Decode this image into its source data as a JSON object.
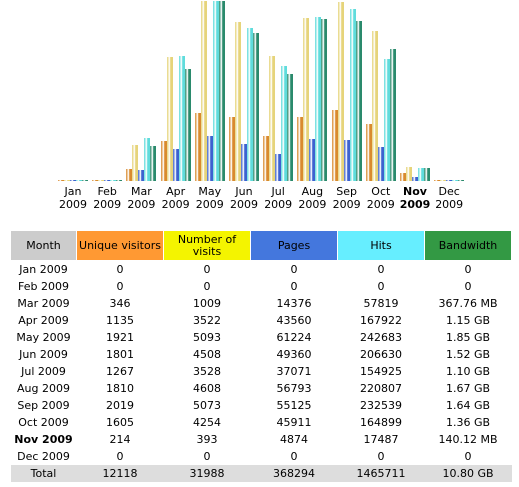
{
  "chart_data": {
    "type": "bar",
    "categories": [
      "Jan 2009",
      "Feb 2009",
      "Mar 2009",
      "Apr 2009",
      "May 2009",
      "Jun 2009",
      "Jul 2009",
      "Aug 2009",
      "Sep 2009",
      "Oct 2009",
      "Nov 2009",
      "Dec 2009"
    ],
    "series": [
      {
        "name": "Unique visitors",
        "color": "#d98a2e",
        "values": [
          0,
          0,
          346,
          1135,
          1921,
          1801,
          1267,
          1810,
          2019,
          1605,
          214,
          0
        ]
      },
      {
        "name": "Number of visits",
        "color": "#e6d47a",
        "values": [
          0,
          0,
          1009,
          3522,
          5093,
          4508,
          3528,
          4608,
          5073,
          4254,
          393,
          0
        ]
      },
      {
        "name": "Pages",
        "color": "#3c62d0",
        "values": [
          0,
          0,
          14376,
          43560,
          61224,
          49360,
          37071,
          56793,
          55125,
          45911,
          4874,
          0
        ]
      },
      {
        "name": "Hits",
        "color": "#5fdcdc",
        "values": [
          0,
          0,
          57819,
          167922,
          242683,
          206630,
          154925,
          220807,
          232539,
          164899,
          17487,
          0
        ]
      },
      {
        "name": "Bandwidth",
        "color": "#2a8a6c",
        "values": [
          0,
          0,
          367.76,
          1177.6,
          1894.4,
          1556.48,
          1126.4,
          1710.08,
          1679.36,
          1392.64,
          140.12,
          0
        ],
        "value_labels": [
          "0",
          "0",
          "367.76 MB",
          "1.15 GB",
          "1.85 GB",
          "1.52 GB",
          "1.10 GB",
          "1.67 GB",
          "1.64 GB",
          "1.36 GB",
          "140.12 MB",
          "0"
        ]
      }
    ]
  },
  "table": {
    "month_header": "Month",
    "total": [
      "Total",
      12118,
      31988,
      368294,
      1465711,
      "10.80 GB"
    ]
  }
}
